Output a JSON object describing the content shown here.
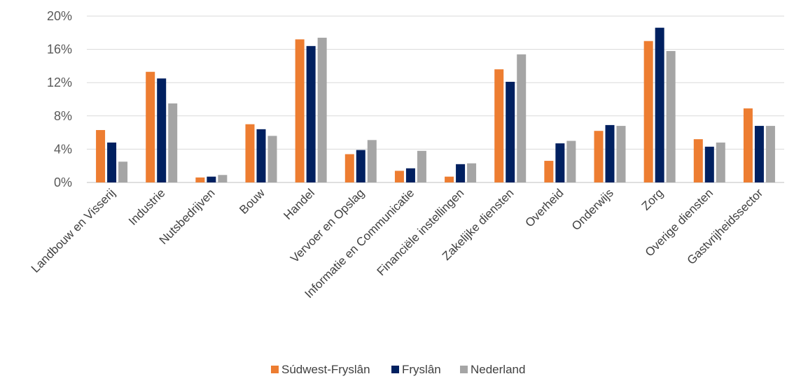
{
  "chart_data": {
    "type": "bar",
    "categories": [
      "Landbouw en Visserij",
      "Industrie",
      "Nutsbedrijven",
      "Bouw",
      "Handel",
      "Vervoer en Opslag",
      "Informatie en Communicatie",
      "Financiële instellingen",
      "Zakelijke diensten",
      "Overheid",
      "Onderwijs",
      "Zorg",
      "Overige diensten",
      "Gastvrijheidssector"
    ],
    "series": [
      {
        "name": "Súdwest-Fryslân",
        "color": "#ed7d31",
        "values": [
          6.3,
          13.3,
          0.6,
          7.0,
          17.2,
          3.4,
          1.4,
          0.7,
          13.6,
          2.6,
          6.2,
          17.0,
          5.2,
          8.9
        ]
      },
      {
        "name": "Fryslân",
        "color": "#002060",
        "values": [
          4.8,
          12.5,
          0.7,
          6.4,
          16.4,
          3.9,
          1.7,
          2.2,
          12.1,
          4.7,
          6.9,
          18.6,
          4.3,
          6.8
        ]
      },
      {
        "name": "Nederland",
        "color": "#a5a5a5",
        "values": [
          2.5,
          9.5,
          0.9,
          5.6,
          17.4,
          5.1,
          3.8,
          2.3,
          15.4,
          5.0,
          6.8,
          15.8,
          4.8,
          6.8
        ]
      }
    ],
    "yticks": [
      "0%",
      "4%",
      "8%",
      "12%",
      "16%",
      "20%"
    ],
    "ylim": [
      0,
      20
    ],
    "grid": true,
    "legend": "bottom-center"
  }
}
